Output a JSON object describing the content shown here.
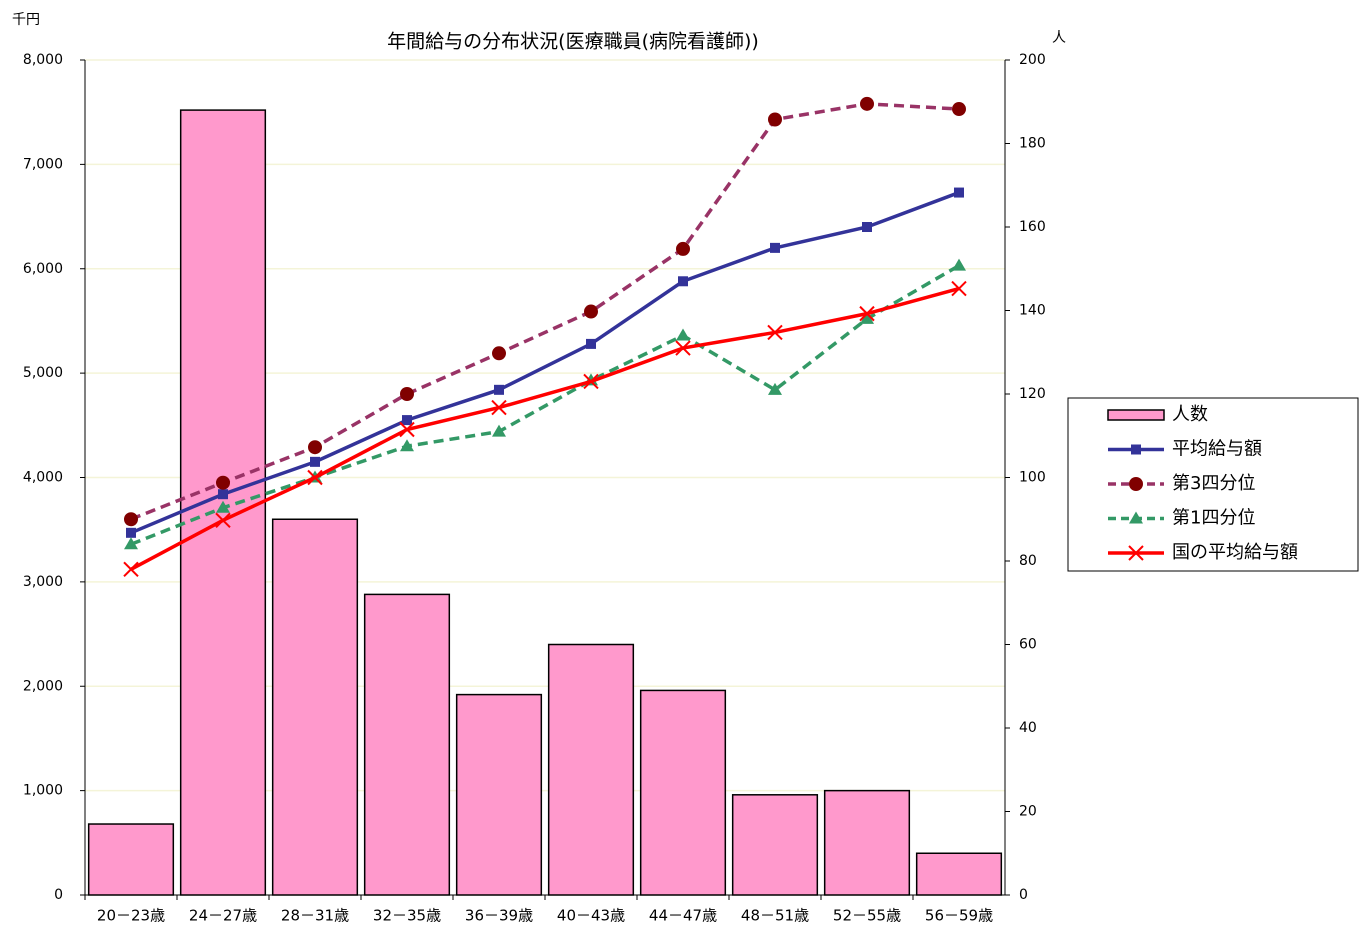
{
  "chart_data": {
    "type": "combo",
    "title": "年間給与の分布状況(医療職員(病院看護師))",
    "y_unit": "千円",
    "y2_unit": "人",
    "categories": [
      "20－23歳",
      "24－27歳",
      "28－31歳",
      "32－35歳",
      "36－39歳",
      "40－43歳",
      "44－47歳",
      "48－51歳",
      "52－55歳",
      "56－59歳"
    ],
    "ylim": [
      0,
      8000
    ],
    "yticks": [
      0,
      {
        "value": 1000,
        "label": "1,000"
      },
      {
        "value": 2000,
        "label": "2,000"
      },
      {
        "value": 3000,
        "label": "3,000"
      },
      {
        "value": 4000,
        "label": "4,000"
      },
      {
        "value": 5000,
        "label": "5,000"
      },
      {
        "value": 6000,
        "label": "6,000"
      },
      {
        "value": 7000,
        "label": "7,000"
      },
      {
        "value": 8000,
        "label": "8,000"
      }
    ],
    "y2lim": [
      0,
      200
    ],
    "y2ticks": [
      0,
      20,
      40,
      60,
      80,
      100,
      120,
      140,
      160,
      180,
      200
    ],
    "grid": true,
    "legend": "right",
    "series": [
      {
        "name": "人数",
        "type": "bar",
        "axis": "y2",
        "color": "#ff99cc",
        "values": [
          17,
          188,
          90,
          72,
          48,
          60,
          49,
          24,
          25,
          10
        ]
      },
      {
        "name": "平均給与額",
        "type": "line",
        "marker": "square",
        "dash": false,
        "color": "#333399",
        "values": [
          3470,
          3840,
          4150,
          4550,
          4840,
          5280,
          5880,
          6200,
          6400,
          6730
        ]
      },
      {
        "name": "第3四分位",
        "type": "line",
        "marker": "circle",
        "dash": true,
        "color": "#993366",
        "marker_color": "#800000",
        "values": [
          3600,
          3950,
          4290,
          4800,
          5190,
          5590,
          6190,
          7430,
          7580,
          7530
        ]
      },
      {
        "name": "第1四分位",
        "type": "line",
        "marker": "triangle",
        "dash": true,
        "color": "#339966",
        "values": [
          3360,
          3710,
          4000,
          4300,
          4440,
          4930,
          5360,
          4840,
          5520,
          6030
        ]
      },
      {
        "name": "国の平均給与額",
        "type": "line",
        "marker": "cross",
        "dash": false,
        "color": "#ff0000",
        "values": [
          3120,
          3590,
          4000,
          4460,
          4670,
          4920,
          5240,
          5390,
          5570,
          5810
        ]
      }
    ]
  }
}
